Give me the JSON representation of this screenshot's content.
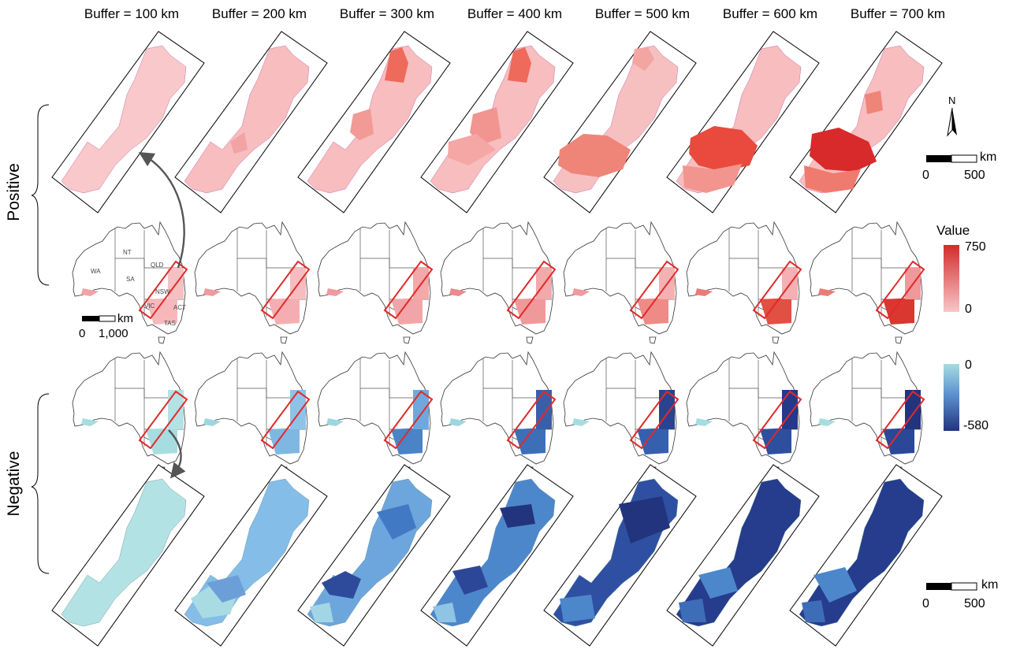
{
  "column_titles": [
    "Buffer = 100 km",
    "Buffer = 200 km",
    "Buffer = 300 km",
    "Buffer = 400 km",
    "Buffer = 500 km",
    "Buffer = 600 km",
    "Buffer = 700 km"
  ],
  "row_labels": {
    "positive": "Positive",
    "negative": "Negative"
  },
  "state_labels": [
    "WA",
    "NT",
    "SA",
    "QLD",
    "NSW",
    "ACT",
    "VIC",
    "TAS"
  ],
  "australia_scalebar": {
    "unit": "km",
    "min": "0",
    "max": "1,000"
  },
  "inset_scalebar_top": {
    "unit": "km",
    "min": "0",
    "max": "500"
  },
  "inset_scalebar_bottom": {
    "unit": "km",
    "min": "0",
    "max": "500"
  },
  "north_arrow": {
    "label": "N"
  },
  "legend_positive": {
    "title": "Value",
    "max": "750",
    "min": "0",
    "colors": [
      "#d42b2b",
      "#f8c6c8"
    ]
  },
  "legend_negative": {
    "max": "0",
    "min": "-580",
    "colors": [
      "#a6dde0",
      "#22347d"
    ]
  }
}
